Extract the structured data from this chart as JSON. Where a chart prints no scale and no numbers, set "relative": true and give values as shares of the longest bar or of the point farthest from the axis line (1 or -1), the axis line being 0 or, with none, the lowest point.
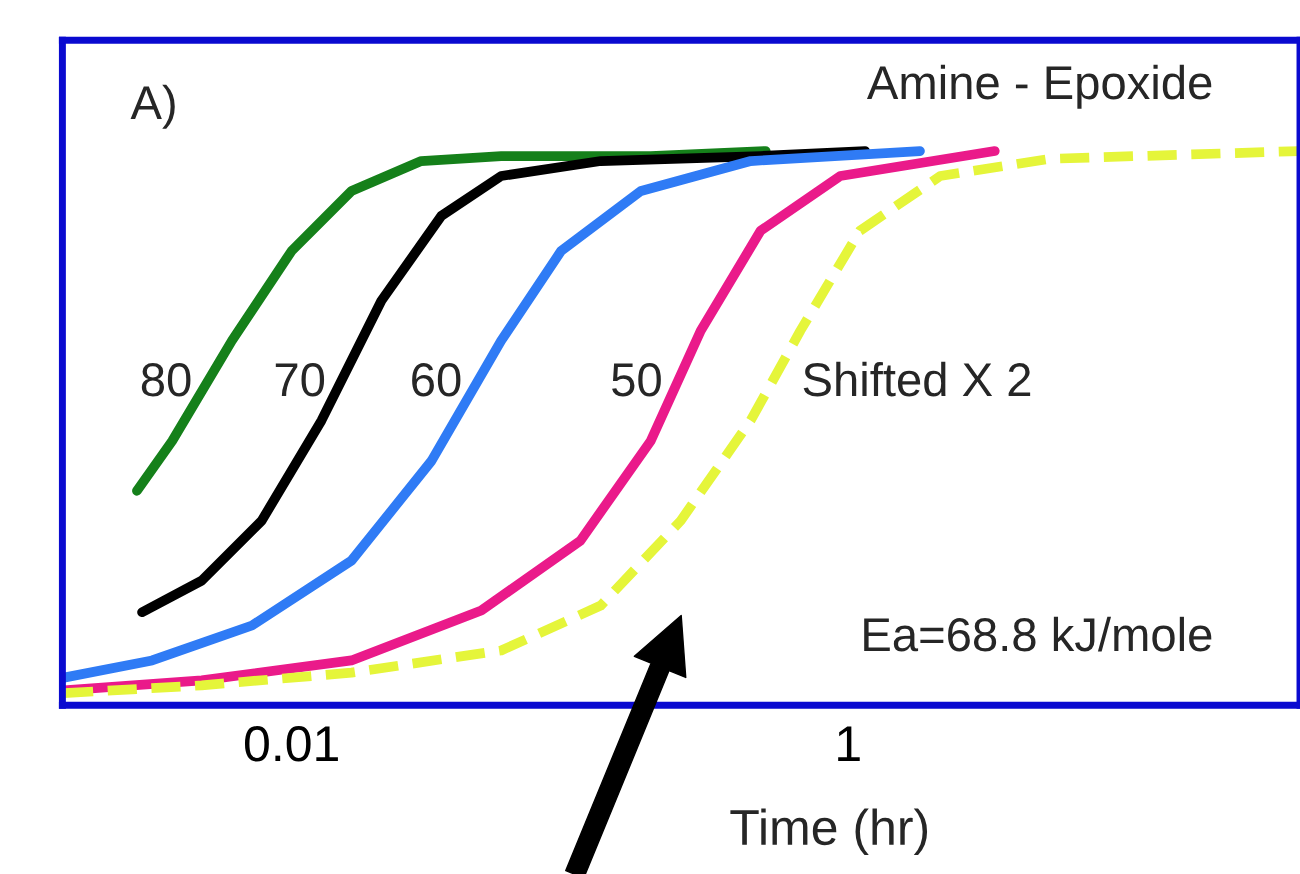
{
  "chart_data": {
    "type": "line",
    "xlabel": "Time (hr)",
    "log": "x",
    "relative": true,
    "tick_labels": "x",
    "grid": false,
    "legend": false,
    "xlim": [
      0.0015,
      42
    ],
    "xticks": [
      0.01,
      1
    ],
    "annotations": [
      "A)",
      "Amine - Epoxide",
      "Ea=68.8 kJ/mole"
    ],
    "series": [
      {
        "name": "80",
        "color": "#15801a",
        "x": [
          0.00278,
          0.00372,
          0.0061,
          0.01,
          0.0164,
          0.0292,
          0.0566,
          0.195,
          0.505
        ],
        "values": [
          0.387,
          0.477,
          0.658,
          0.82,
          0.928,
          0.982,
          0.991,
          0.991,
          1.0
        ]
      },
      {
        "name": "70",
        "color": "#000000",
        "x": [
          0.0029,
          0.00475,
          0.0078,
          0.0128,
          0.021,
          0.0345,
          0.0566,
          0.129,
          0.484,
          1.15
        ],
        "values": [
          0.168,
          0.225,
          0.333,
          0.514,
          0.73,
          0.883,
          0.955,
          0.982,
          0.991,
          1.0
        ]
      },
      {
        "name": "60",
        "color": "#2f7bf5",
        "x": [
          0.00152,
          0.00315,
          0.0072,
          0.0164,
          0.0318,
          0.0566,
          0.093,
          0.18,
          0.446,
          1.81
        ],
        "values": [
          0.05,
          0.081,
          0.144,
          0.261,
          0.441,
          0.658,
          0.82,
          0.928,
          0.982,
          1.0
        ]
      },
      {
        "name": "50",
        "color": "#ea1a8a",
        "x": [
          0.00152,
          0.00475,
          0.0164,
          0.048,
          0.109,
          0.195,
          0.295,
          0.484,
          0.936,
          3.36
        ],
        "values": [
          0.027,
          0.045,
          0.081,
          0.171,
          0.297,
          0.477,
          0.676,
          0.856,
          0.955,
          1.0
        ]
      },
      {
        "name": "Shifted X 2",
        "color": "#e5f53a",
        "line_style": "dashed",
        "x": [
          0.00152,
          0.00475,
          0.0164,
          0.0566,
          0.129,
          0.25,
          0.446,
          0.673,
          1.1,
          2.14,
          5.3,
          41.7
        ],
        "values": [
          0.022,
          0.036,
          0.059,
          0.099,
          0.18,
          0.333,
          0.514,
          0.676,
          0.856,
          0.955,
          0.986,
          1.0
        ]
      }
    ]
  }
}
